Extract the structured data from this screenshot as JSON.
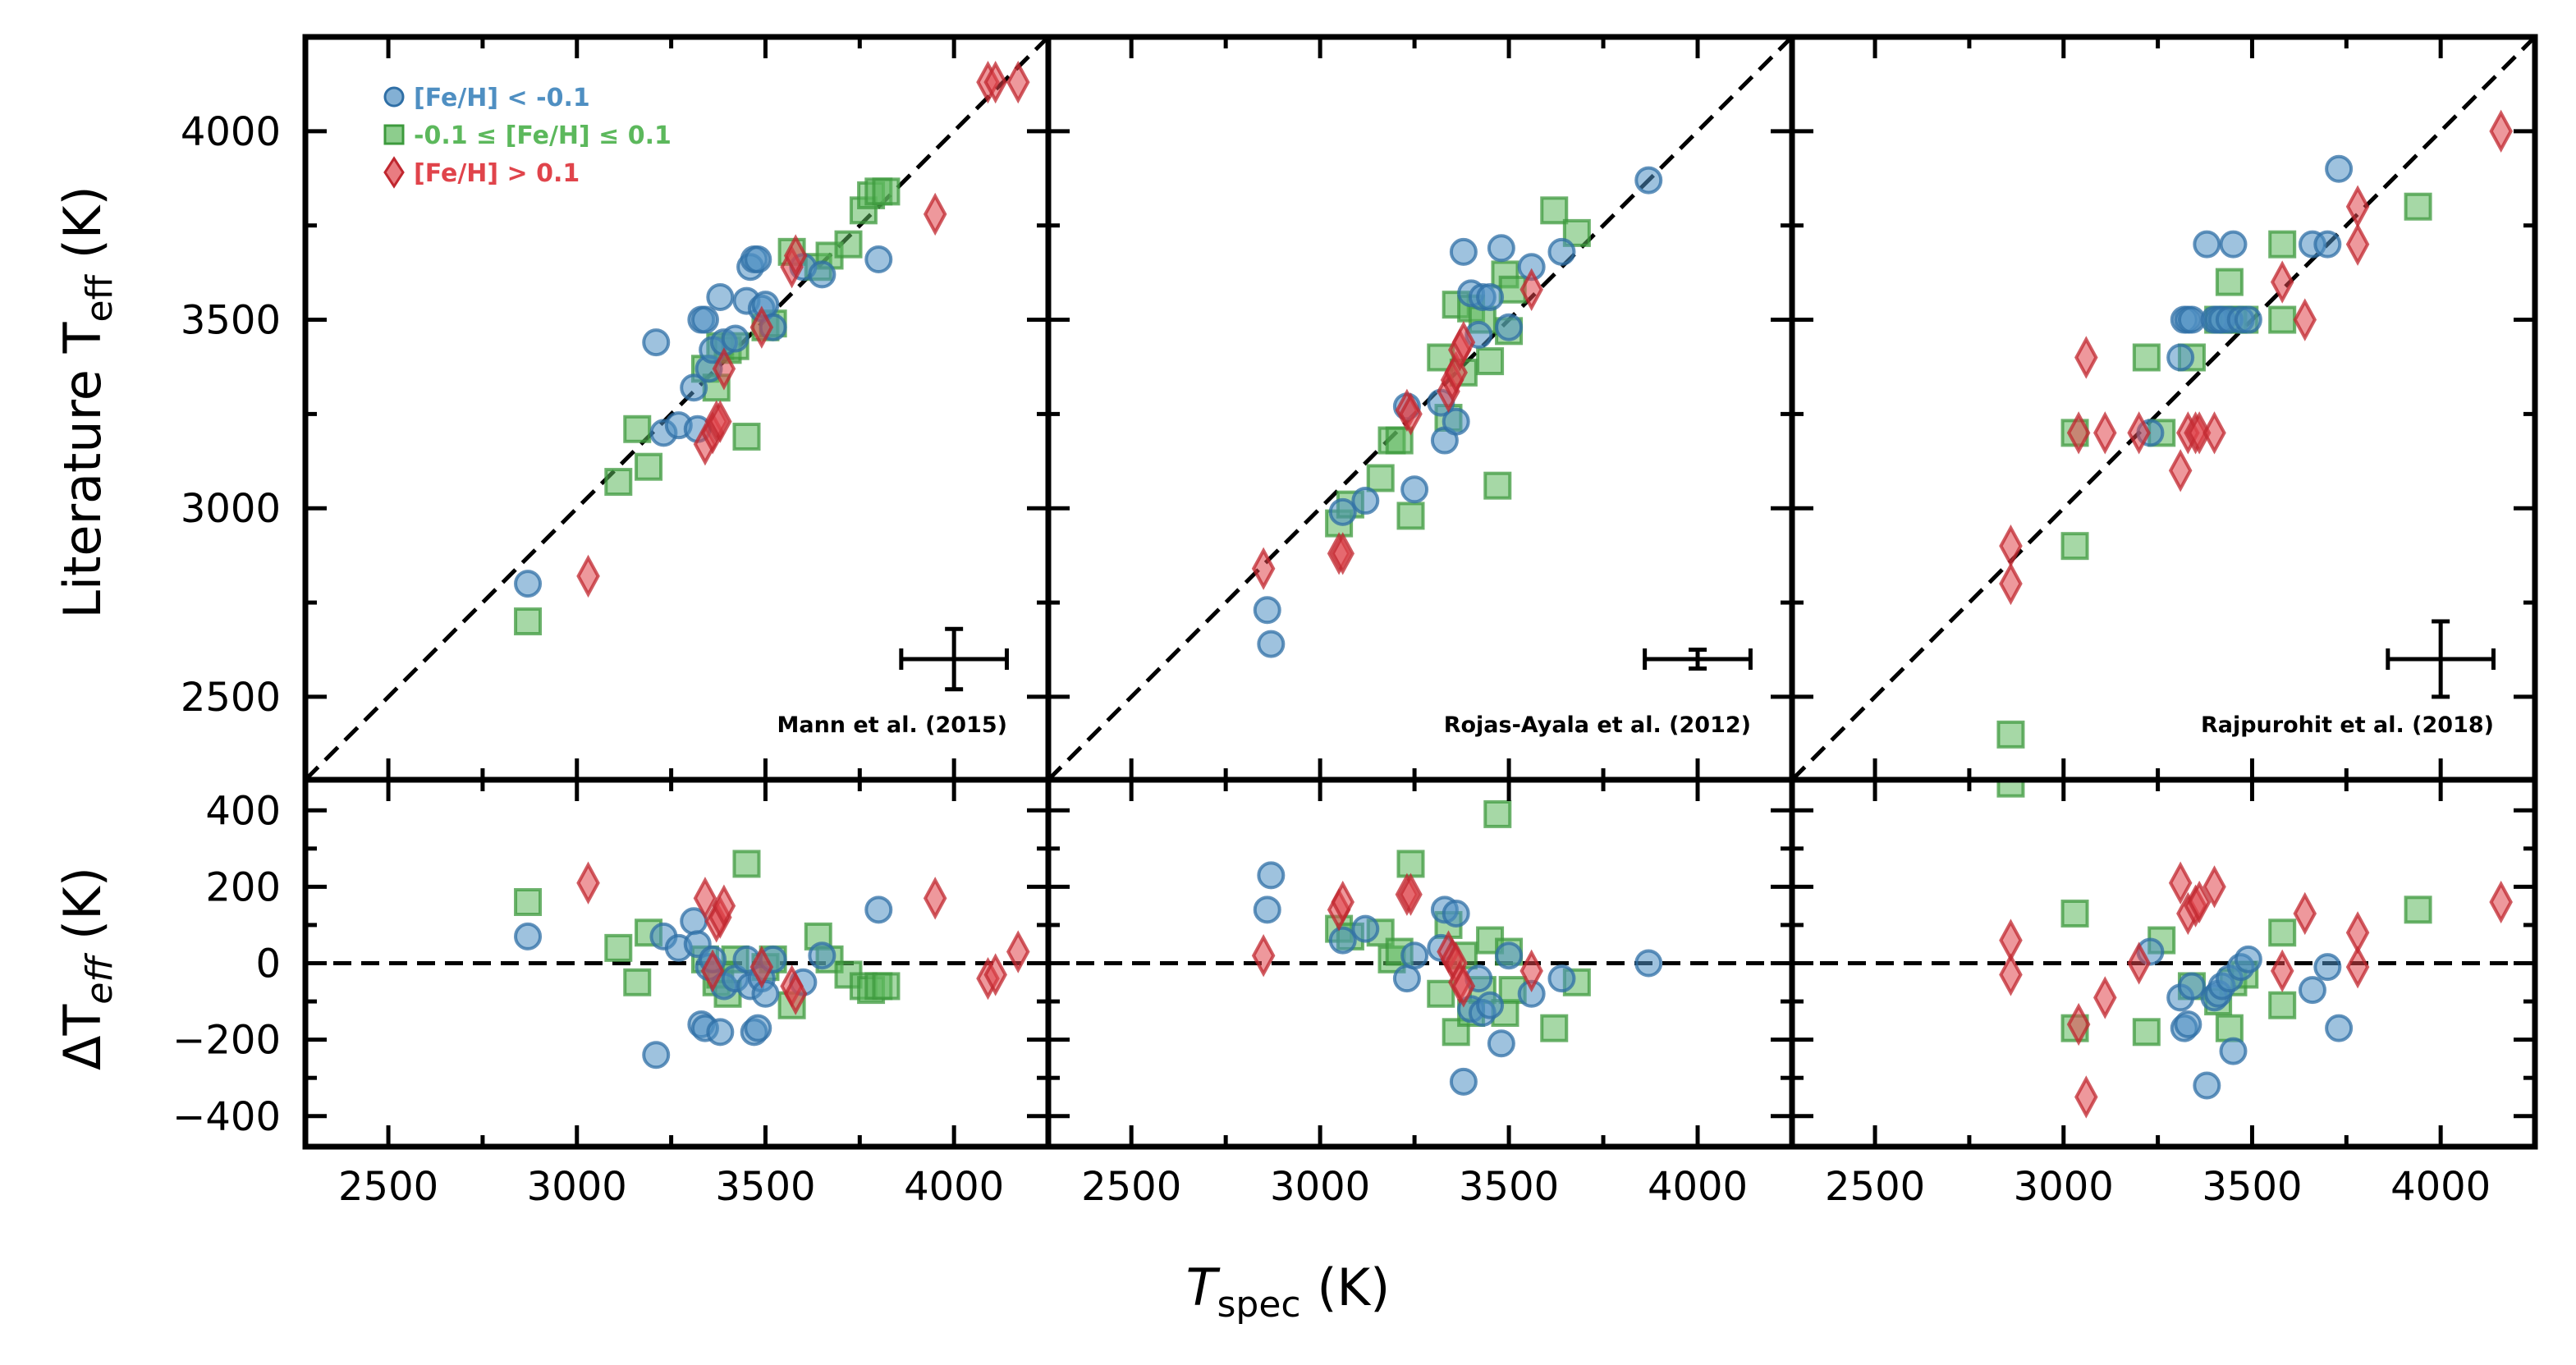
{
  "chart_data": {
    "type": "scatter",
    "colors": {
      "metal_poor": "#4f8fc2",
      "solar": "#5cb85c",
      "metal_rich": "#e0444b",
      "axes": "#000000"
    },
    "legend": {
      "placement": "upper-left",
      "entries": [
        {
          "key": "metal_poor",
          "label": "[Fe/H] < -0.1",
          "marker": "circle"
        },
        {
          "key": "solar",
          "label": "-0.1 ≤ [Fe/H] ≤ 0.1",
          "marker": "square"
        },
        {
          "key": "metal_rich",
          "label": "[Fe/H] > 0.1",
          "marker": "diamond"
        }
      ]
    },
    "xlabel_main": "T",
    "xlabel_sub": "spec",
    "xlabel_unit": " (K)",
    "ylabel_top_main": "Literature T",
    "ylabel_top_sub": "eff",
    "ylabel_top_unit": " (K)",
    "ylabel_bottom": "ΔT",
    "ylabel_bottom_sub": "eff",
    "ylabel_bottom_unit": " (K)",
    "xlim": [
      2280,
      4250
    ],
    "ylim_top": [
      2280,
      4250
    ],
    "ylim_bottom": [
      -480,
      480
    ],
    "x_ticks": [
      2500,
      3000,
      3500,
      4000
    ],
    "y_ticks_top": [
      2500,
      3000,
      3500,
      4000
    ],
    "y_ticks_bottom": [
      -400,
      -200,
      0,
      200,
      400
    ],
    "panels": [
      {
        "reference": "Mann et al. (2015)",
        "error_bar": {
          "x": 4000,
          "y": 2600,
          "xerr": 140,
          "yerr": 80
        },
        "metal_poor": {
          "x": [
            2870,
            3210,
            3230,
            3270,
            3310,
            3320,
            3330,
            3340,
            3350,
            3360,
            3380,
            3390,
            3420,
            3450,
            3460,
            3470,
            3480,
            3490,
            3500,
            3520,
            3600,
            3650,
            3800
          ],
          "y": [
            2800,
            3440,
            3200,
            3220,
            3320,
            3210,
            3500,
            3500,
            3370,
            3420,
            3560,
            3440,
            3450,
            3550,
            3640,
            3660,
            3660,
            3530,
            3540,
            3480,
            3640,
            3620,
            3660
          ]
        },
        "solar": {
          "x": [
            2870,
            3110,
            3160,
            3190,
            3340,
            3370,
            3380,
            3400,
            3420,
            3450,
            3500,
            3520,
            3570,
            3640,
            3670,
            3720,
            3760,
            3780,
            3800,
            3820
          ],
          "y": [
            2700,
            3070,
            3210,
            3110,
            3370,
            3320,
            3430,
            3420,
            3430,
            3190,
            3480,
            3490,
            3680,
            3640,
            3670,
            3700,
            3790,
            3830,
            3840,
            3840
          ]
        },
        "metal_rich": {
          "x": [
            3030,
            3340,
            3360,
            3370,
            3380,
            3390,
            3490,
            3570,
            3580,
            3950,
            4090,
            4110,
            4170
          ],
          "y": [
            2820,
            3170,
            3200,
            3230,
            3230,
            3370,
            3480,
            3640,
            3670,
            3780,
            4130,
            4130,
            4130
          ]
        },
        "residual": {
          "metal_poor": {
            "x": [
              2870,
              3210,
              3230,
              3270,
              3310,
              3320,
              3330,
              3340,
              3350,
              3360,
              3380,
              3390,
              3420,
              3450,
              3460,
              3470,
              3480,
              3490,
              3500,
              3520,
              3600,
              3650,
              3800
            ],
            "y": [
              70,
              -240,
              70,
              40,
              110,
              50,
              -160,
              -170,
              -10,
              10,
              -180,
              -60,
              -40,
              10,
              -60,
              -180,
              -170,
              -40,
              -80,
              10,
              -50,
              20,
              140
            ]
          },
          "solar": {
            "x": [
              2870,
              3110,
              3160,
              3190,
              3340,
              3370,
              3380,
              3400,
              3420,
              3450,
              3500,
              3520,
              3570,
              3640,
              3670,
              3720,
              3760,
              3780,
              3800,
              3820
            ],
            "y": [
              160,
              40,
              -50,
              80,
              10,
              -50,
              -30,
              -80,
              10,
              260,
              -10,
              10,
              -110,
              70,
              10,
              -30,
              -60,
              -70,
              -60,
              -60
            ]
          },
          "metal_rich": {
            "x": [
              3030,
              3340,
              3360,
              3370,
              3380,
              3390,
              3490,
              3570,
              3580,
              3950,
              4090,
              4110,
              4170
            ],
            "y": [
              210,
              170,
              -20,
              110,
              120,
              150,
              -10,
              -60,
              -80,
              170,
              -40,
              -30,
              30
            ]
          }
        }
      },
      {
        "reference": "Rojas-Ayala et al. (2012)",
        "error_bar": {
          "x": 4000,
          "y": 2600,
          "xerr": 140,
          "yerr": 25
        },
        "metal_poor": {
          "x": [
            2860,
            2870,
            3060,
            3120,
            3230,
            3250,
            3320,
            3330,
            3360,
            3380,
            3400,
            3420,
            3430,
            3450,
            3480,
            3500,
            3560,
            3640,
            3870
          ],
          "y": [
            2730,
            2640,
            2990,
            3020,
            3270,
            3050,
            3280,
            3180,
            3230,
            3680,
            3570,
            3460,
            3560,
            3560,
            3690,
            3480,
            3640,
            3680,
            3870
          ]
        },
        "solar": {
          "x": [
            3050,
            3080,
            3160,
            3190,
            3210,
            3240,
            3320,
            3340,
            3360,
            3380,
            3400,
            3430,
            3450,
            3470,
            3490,
            3500,
            3510,
            3620,
            3680
          ],
          "y": [
            2960,
            3010,
            3080,
            3180,
            3180,
            2980,
            3400,
            3240,
            3540,
            3360,
            3530,
            3500,
            3390,
            3060,
            3620,
            3470,
            3580,
            3790,
            3730
          ]
        },
        "metal_rich": {
          "x": [
            2850,
            3050,
            3060,
            3230,
            3240,
            3340,
            3350,
            3360,
            3370,
            3380,
            3560
          ],
          "y": [
            2840,
            2880,
            2880,
            3260,
            3250,
            3310,
            3340,
            3360,
            3420,
            3440,
            3580
          ]
        },
        "residual": {
          "metal_poor": {
            "x": [
              2860,
              2870,
              3060,
              3120,
              3230,
              3250,
              3320,
              3330,
              3360,
              3380,
              3400,
              3420,
              3430,
              3450,
              3480,
              3500,
              3560,
              3640,
              3870
            ],
            "y": [
              140,
              230,
              60,
              90,
              -40,
              20,
              40,
              140,
              130,
              -310,
              -120,
              -40,
              -130,
              -110,
              -210,
              20,
              -80,
              -40,
              0
            ]
          },
          "solar": {
            "x": [
              3050,
              3080,
              3160,
              3190,
              3210,
              3240,
              3320,
              3340,
              3360,
              3380,
              3400,
              3430,
              3450,
              3470,
              3490,
              3500,
              3510,
              3620,
              3680
            ],
            "y": [
              90,
              70,
              80,
              10,
              30,
              260,
              -80,
              100,
              -180,
              20,
              -130,
              -70,
              60,
              390,
              -130,
              30,
              -70,
              -170,
              -50
            ]
          },
          "metal_rich": {
            "x": [
              2850,
              3050,
              3060,
              3230,
              3240,
              3340,
              3350,
              3360,
              3370,
              3380,
              3560
            ],
            "y": [
              20,
              140,
              160,
              180,
              180,
              30,
              10,
              0,
              -50,
              -60,
              -20
            ]
          }
        }
      },
      {
        "reference": "Rajpurohit et al. (2018)",
        "error_bar": {
          "x": 4000,
          "y": 2600,
          "xerr": 140,
          "yerr": 100
        },
        "metal_poor": {
          "x": [
            3230,
            3310,
            3320,
            3330,
            3340,
            3380,
            3400,
            3410,
            3420,
            3440,
            3450,
            3470,
            3490,
            3660,
            3700,
            3730
          ],
          "y": [
            3200,
            3400,
            3500,
            3500,
            3500,
            3700,
            3500,
            3500,
            3500,
            3500,
            3700,
            3500,
            3500,
            3700,
            3700,
            3900
          ]
        },
        "solar": {
          "x": [
            2860,
            3030,
            3030,
            3220,
            3260,
            3340,
            3410,
            3440,
            3450,
            3480,
            3580,
            3580,
            3940
          ],
          "y": [
            2400,
            3200,
            2900,
            3400,
            3200,
            3400,
            3500,
            3600,
            3500,
            3500,
            3700,
            3500,
            3800
          ]
        },
        "metal_rich": {
          "x": [
            2860,
            2860,
            3040,
            3060,
            3110,
            3200,
            3310,
            3330,
            3350,
            3360,
            3400,
            3580,
            3640,
            3780,
            3780,
            4160
          ],
          "y": [
            2900,
            2800,
            3200,
            3400,
            3200,
            3200,
            3100,
            3200,
            3200,
            3200,
            3200,
            3600,
            3500,
            3800,
            3700,
            4000
          ]
        },
        "residual": {
          "metal_poor": {
            "x": [
              3230,
              3310,
              3320,
              3330,
              3340,
              3380,
              3400,
              3410,
              3420,
              3440,
              3450,
              3470,
              3490,
              3660,
              3700,
              3730
            ],
            "y": [
              30,
              -90,
              -170,
              -160,
              -60,
              -320,
              -90,
              -80,
              -60,
              -40,
              -230,
              -10,
              10,
              -70,
              -10,
              -170
            ]
          },
          "solar": {
            "x": [
              2860,
              3030,
              3030,
              3220,
              3260,
              3340,
              3410,
              3440,
              3450,
              3480,
              3580,
              3580,
              3940
            ],
            "y": [
              470,
              -170,
              130,
              -180,
              60,
              -60,
              -100,
              -170,
              -50,
              -30,
              -110,
              80,
              140
            ]
          },
          "metal_rich": {
            "x": [
              2860,
              2860,
              3040,
              3060,
              3110,
              3200,
              3310,
              3330,
              3350,
              3360,
              3400,
              3580,
              3640,
              3780,
              3780,
              4160
            ],
            "y": [
              -30,
              60,
              -160,
              -350,
              -90,
              0,
              210,
              130,
              150,
              160,
              200,
              -20,
              130,
              -10,
              80,
              160
            ]
          }
        }
      }
    ]
  }
}
